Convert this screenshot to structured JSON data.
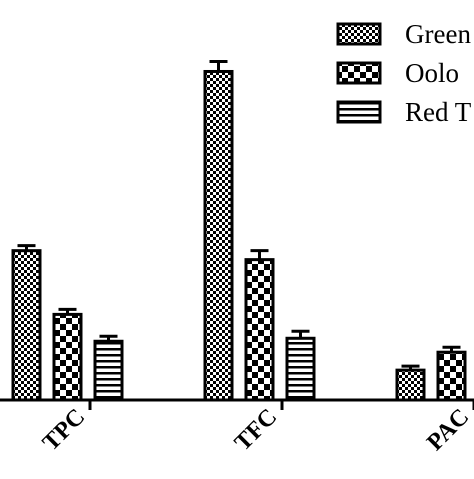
{
  "chart_data": {
    "type": "bar",
    "categories": [
      "TPC",
      "TFC",
      "PAC"
    ],
    "series": [
      {
        "name": "Green",
        "values": [
          150,
          330,
          30
        ],
        "errors": [
          2,
          7,
          1
        ]
      },
      {
        "name": "Oolo",
        "values": [
          86,
          141,
          48
        ],
        "errors": [
          2,
          6,
          2
        ]
      },
      {
        "name": "Red T",
        "values": [
          59,
          62,
          null
        ],
        "errors": [
          2,
          4,
          null
        ]
      }
    ],
    "legend_position": "top-right",
    "grid": false,
    "patterns": [
      "fine-checker",
      "coarse-checker",
      "horizontal-stripes"
    ],
    "colors": {
      "ink": "#000000",
      "fill": "#ffffff"
    }
  }
}
